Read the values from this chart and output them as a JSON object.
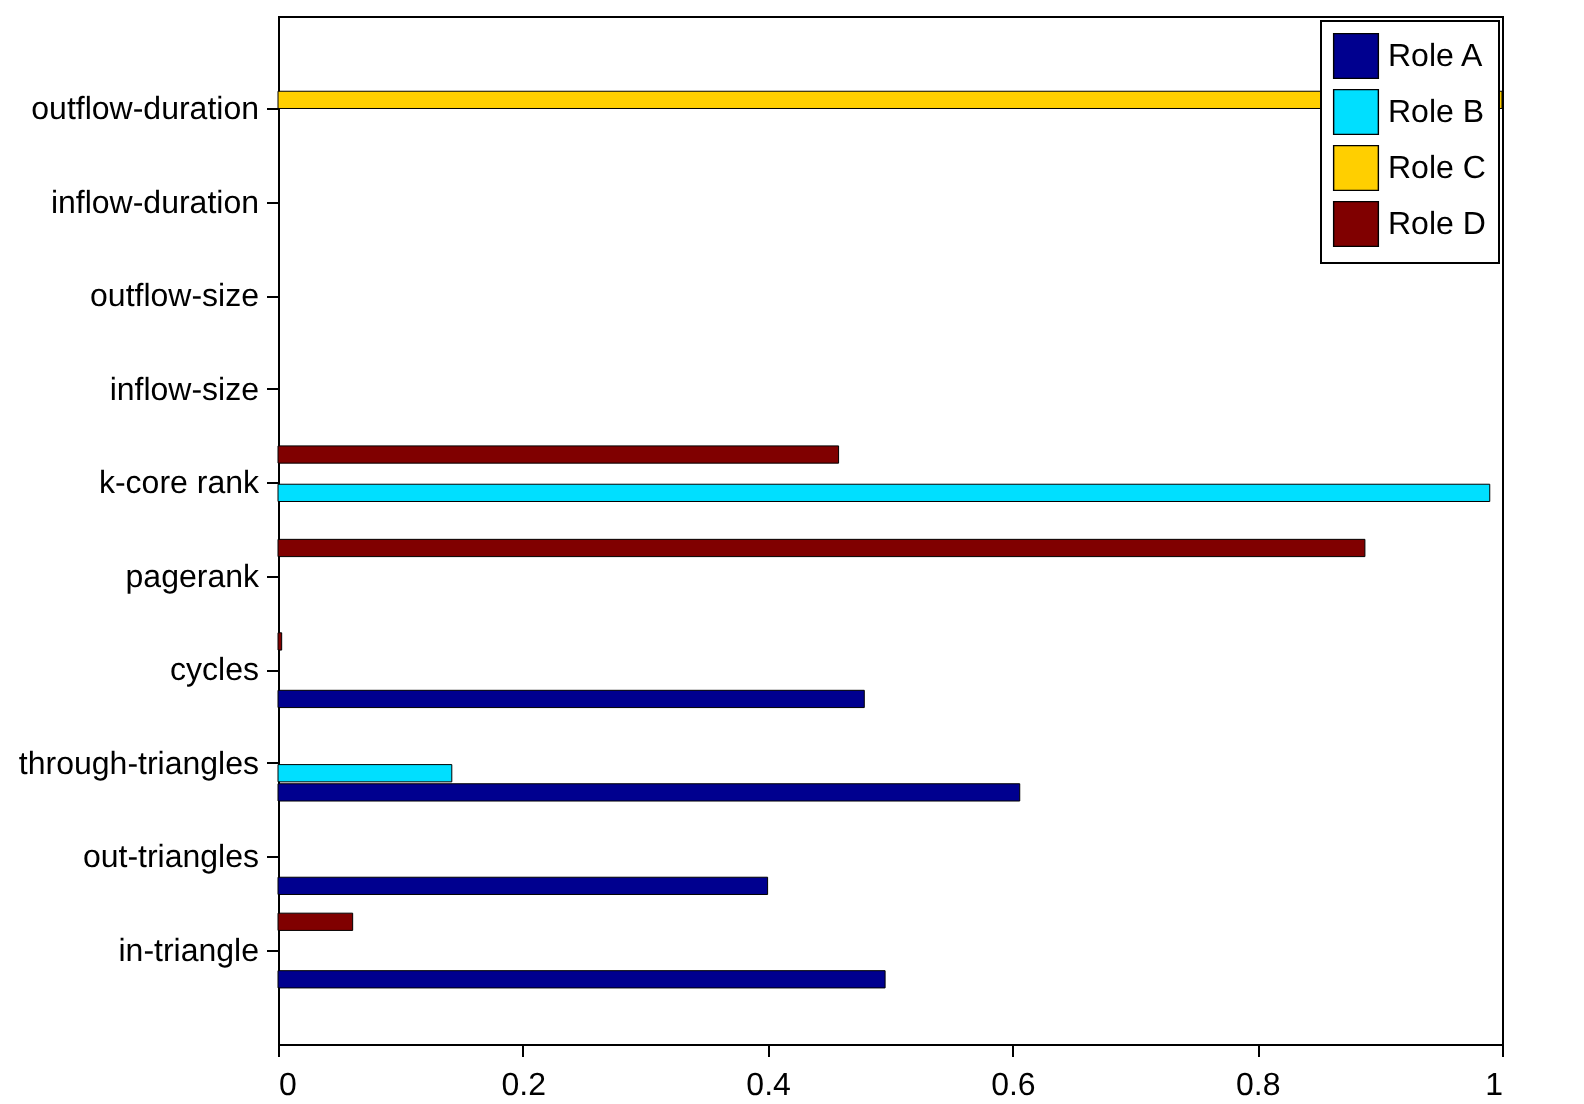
{
  "chart_data": {
    "type": "bar",
    "orientation": "horizontal",
    "categories": [
      "outflow-duration",
      "inflow-duration",
      "outflow-size",
      "inflow-size",
      "k-core rank",
      "pagerank",
      "cycles",
      "through-triangles",
      "out-triangles",
      "in-triangle"
    ],
    "series": [
      {
        "name": "Role A",
        "color": "#00008f",
        "values": [
          null,
          null,
          null,
          null,
          null,
          null,
          0.479,
          0.606,
          0.4,
          0.496
        ]
      },
      {
        "name": "Role B",
        "color": "#00dfff",
        "values": [
          null,
          null,
          null,
          null,
          0.99,
          null,
          null,
          0.142,
          null,
          null
        ]
      },
      {
        "name": "Role C",
        "color": "#ffcf00",
        "values": [
          1.0,
          null,
          null,
          null,
          null,
          null,
          null,
          null,
          null,
          null
        ]
      },
      {
        "name": "Role D",
        "color": "#800000",
        "values": [
          null,
          null,
          null,
          null,
          0.458,
          0.888,
          0.003,
          null,
          null,
          0.061
        ]
      }
    ],
    "xlim": [
      0,
      1
    ],
    "xticks": [
      0,
      0.2,
      0.4,
      0.6,
      0.8,
      1
    ],
    "legend": "top right",
    "grid": false
  }
}
